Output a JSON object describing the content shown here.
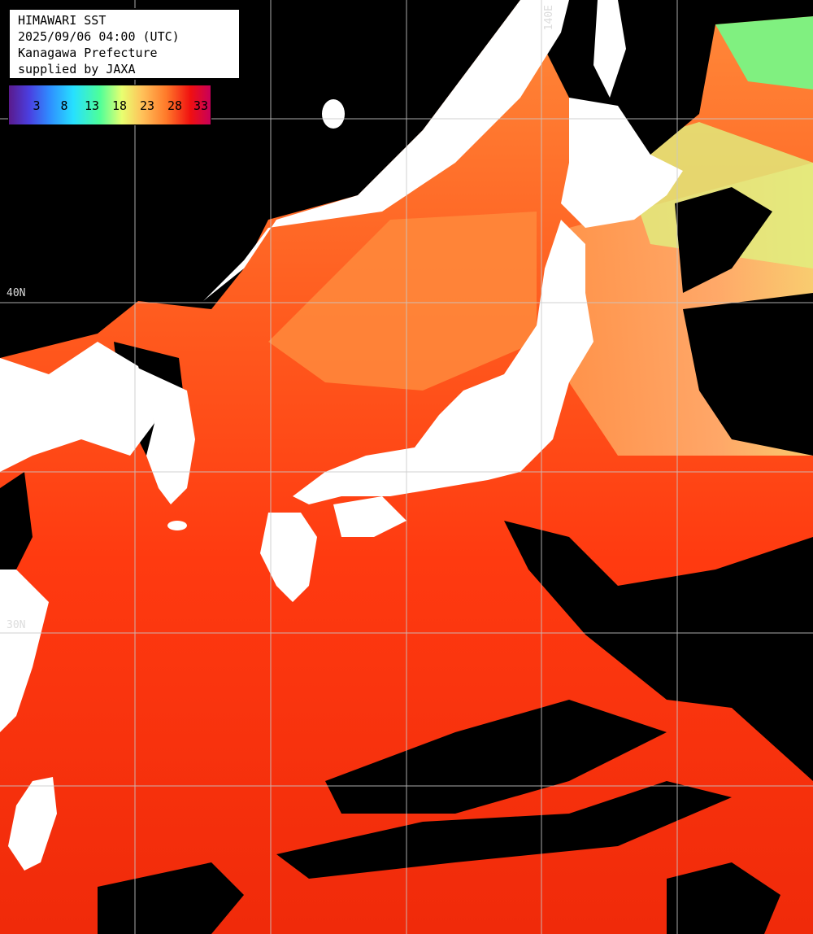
{
  "title_lines": [
    "HIMAWARI SST",
    "2025/09/06 04:00 (UTC)",
    "Kanagawa Prefecture",
    "supplied by JAXA"
  ],
  "legend": {
    "ticks": [
      "3",
      "8",
      "13",
      "18",
      "23",
      "28",
      "33"
    ],
    "unit_colors": [
      "#5a1a8c",
      "#2f8cff",
      "#4dff9a",
      "#ffc25a",
      "#f01010",
      "#c8005a"
    ]
  },
  "grid_labels": {
    "lon_140": "140E",
    "lat_40": "40N",
    "lat_30": "30N"
  },
  "colors": {
    "land": "#ffffff",
    "cloud": "#000000",
    "sea_warm": "#ff3c0a",
    "sea_mid": "#ff8c3c",
    "sea_cool": "#a0ff80",
    "grid": "#c8c8c8"
  }
}
